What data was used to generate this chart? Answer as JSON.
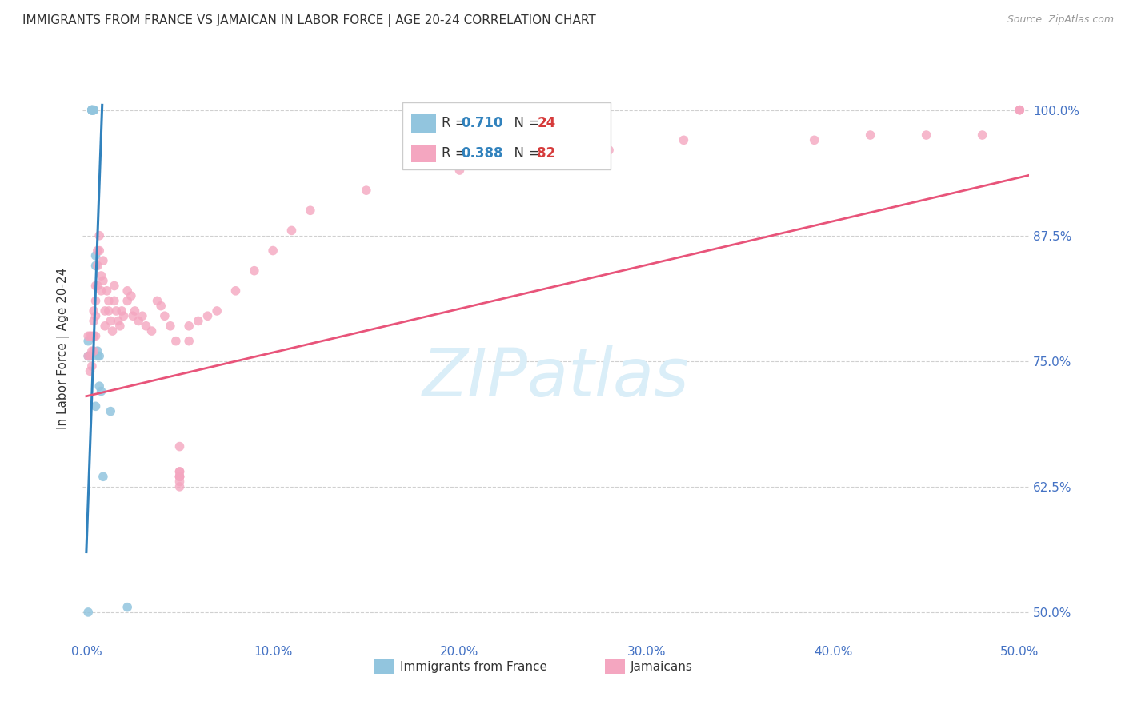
{
  "title": "IMMIGRANTS FROM FRANCE VS JAMAICAN IN LABOR FORCE | AGE 20-24 CORRELATION CHART",
  "source": "Source: ZipAtlas.com",
  "ylabel": "In Labor Force | Age 20-24",
  "france_R": 0.71,
  "france_N": 24,
  "jamaica_R": 0.388,
  "jamaica_N": 82,
  "france_color": "#92c5de",
  "jamaica_color": "#f4a6c0",
  "france_line_color": "#3182bd",
  "jamaica_line_color": "#e8547a",
  "legend_R_color": "#3182bd",
  "legend_N_color": "#d63b3b",
  "watermark_color": "#daeef8",
  "xlim": [
    -0.002,
    0.505
  ],
  "ylim": [
    0.47,
    1.055
  ],
  "x_ticks": [
    0.0,
    0.1,
    0.2,
    0.3,
    0.4,
    0.5
  ],
  "x_tick_labels": [
    "0.0%",
    "10.0%",
    "20.0%",
    "30.0%",
    "40.0%",
    "50.0%"
  ],
  "y_ticks": [
    0.5,
    0.625,
    0.75,
    0.875,
    1.0
  ],
  "y_tick_labels": [
    "50.0%",
    "62.5%",
    "75.0%",
    "87.5%",
    "100.0%"
  ],
  "france_x": [
    0.001,
    0.001,
    0.002,
    0.003,
    0.003,
    0.003,
    0.003,
    0.003,
    0.003,
    0.004,
    0.004,
    0.004,
    0.005,
    0.005,
    0.005,
    0.006,
    0.006,
    0.007,
    0.007,
    0.008,
    0.009,
    0.013,
    0.022,
    0.001
  ],
  "france_y": [
    0.755,
    0.77,
    0.755,
    1.0,
    1.0,
    1.0,
    1.0,
    1.0,
    1.0,
    1.0,
    1.0,
    1.0,
    0.855,
    0.845,
    0.705,
    0.76,
    0.755,
    0.755,
    0.725,
    0.72,
    0.635,
    0.7,
    0.505,
    0.5
  ],
  "jamaica_x": [
    0.001,
    0.001,
    0.002,
    0.002,
    0.002,
    0.003,
    0.003,
    0.003,
    0.004,
    0.004,
    0.004,
    0.004,
    0.005,
    0.005,
    0.005,
    0.005,
    0.006,
    0.006,
    0.006,
    0.007,
    0.007,
    0.008,
    0.008,
    0.009,
    0.009,
    0.01,
    0.01,
    0.011,
    0.012,
    0.012,
    0.013,
    0.014,
    0.015,
    0.015,
    0.016,
    0.017,
    0.018,
    0.019,
    0.02,
    0.022,
    0.022,
    0.024,
    0.025,
    0.026,
    0.028,
    0.03,
    0.032,
    0.035,
    0.038,
    0.04,
    0.042,
    0.045,
    0.048,
    0.05,
    0.05,
    0.05,
    0.05,
    0.05,
    0.05,
    0.05,
    0.05,
    0.055,
    0.055,
    0.06,
    0.065,
    0.07,
    0.08,
    0.09,
    0.1,
    0.11,
    0.12,
    0.15,
    0.2,
    0.28,
    0.32,
    0.39,
    0.42,
    0.45,
    0.48,
    0.5,
    0.5,
    0.5
  ],
  "jamaica_y": [
    0.775,
    0.755,
    0.775,
    0.755,
    0.74,
    0.775,
    0.76,
    0.745,
    0.8,
    0.79,
    0.775,
    0.76,
    0.825,
    0.81,
    0.795,
    0.775,
    0.86,
    0.845,
    0.825,
    0.875,
    0.86,
    0.835,
    0.82,
    0.85,
    0.83,
    0.8,
    0.785,
    0.82,
    0.81,
    0.8,
    0.79,
    0.78,
    0.825,
    0.81,
    0.8,
    0.79,
    0.785,
    0.8,
    0.795,
    0.82,
    0.81,
    0.815,
    0.795,
    0.8,
    0.79,
    0.795,
    0.785,
    0.78,
    0.81,
    0.805,
    0.795,
    0.785,
    0.77,
    0.665,
    0.64,
    0.64,
    0.635,
    0.635,
    0.635,
    0.63,
    0.625,
    0.785,
    0.77,
    0.79,
    0.795,
    0.8,
    0.82,
    0.84,
    0.86,
    0.88,
    0.9,
    0.92,
    0.94,
    0.96,
    0.97,
    0.97,
    0.975,
    0.975,
    0.975,
    1.0,
    1.0,
    1.0
  ],
  "france_line_x": [
    0.0,
    0.0085
  ],
  "france_line_y": [
    0.56,
    1.005
  ],
  "jamaica_line_x": [
    0.0,
    0.505
  ],
  "jamaica_line_y": [
    0.715,
    0.935
  ]
}
